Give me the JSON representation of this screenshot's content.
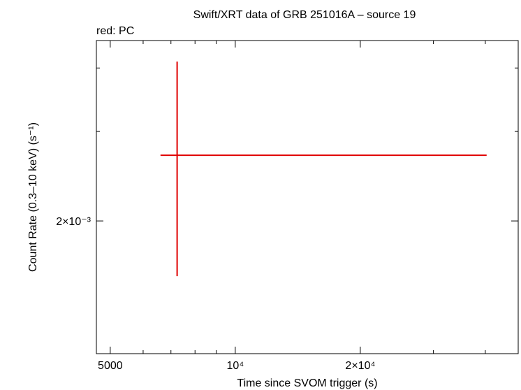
{
  "chart_data": {
    "type": "errorbar",
    "title": "Swift/XRT data of GRB 251016A – source 19",
    "subtitle": "red: PC",
    "x_label": "Time since SVOM trigger (s)",
    "y_label": "Count Rate (0.3–10 keV) (s⁻¹)",
    "xscale": "log",
    "yscale": "log",
    "xlim": [
      4630,
      48000
    ],
    "ylim": [
      0.001096,
      0.00453
    ],
    "xticks": [
      5000,
      {
        "value": 10000,
        "label": "10⁴"
      },
      {
        "value": 20000,
        "label": "2×10⁴"
      }
    ],
    "xminorticks": [
      6000,
      7000,
      8000,
      9000,
      30000,
      40000
    ],
    "yticks": [
      {
        "value": 0.002,
        "label": "2×10⁻³"
      }
    ],
    "yminorticks": [
      0.003,
      0.004
    ],
    "series": [
      {
        "color": "#e00000",
        "x": [
          7244
        ],
        "x_lower": [
          6606
        ],
        "x_upper": [
          40290
        ],
        "values": [
          0.002693
        ],
        "y_lower": [
          0.001557
        ],
        "y_upper": [
          0.004117
        ]
      }
    ]
  }
}
